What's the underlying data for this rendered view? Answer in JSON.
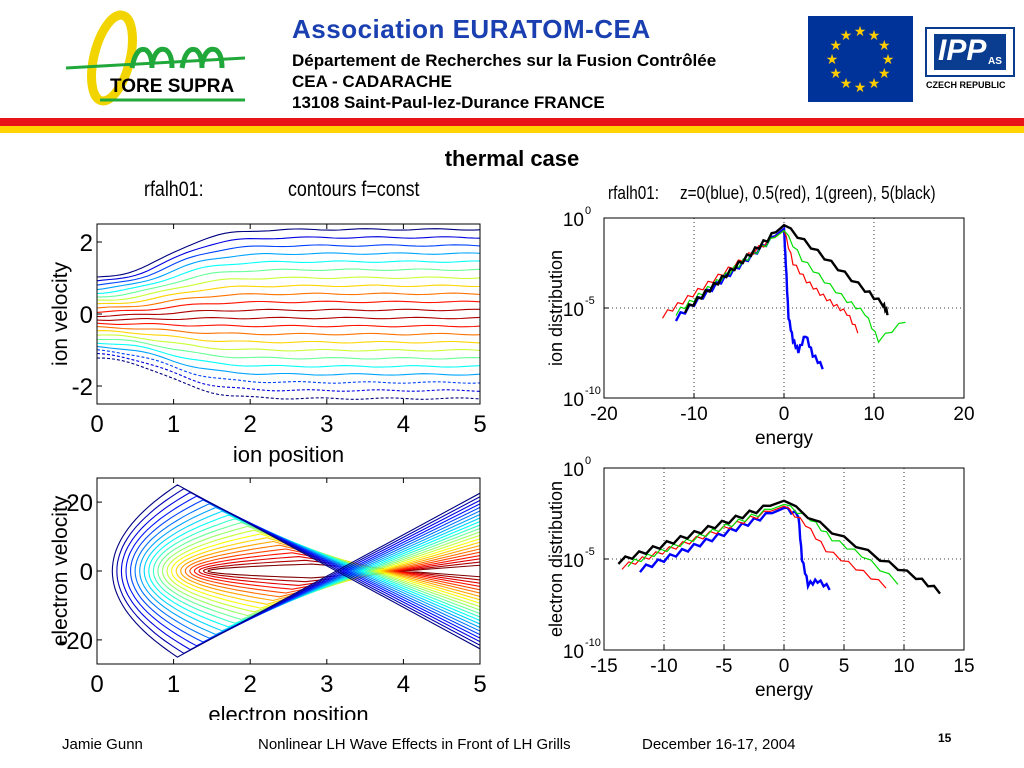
{
  "header": {
    "logo_text": "TORE SUPRA",
    "title": "Association  EURATOM-CEA",
    "line1": "Département de Recherches sur la Fusion Contrôlée",
    "line2": "CEA - CADARACHE",
    "line3": "13108 Saint-Paul-lez-Durance   FRANCE",
    "ipp_logo": "IPP",
    "ipp_sub": "AS",
    "ipp_country": "CZECH REPUBLIC",
    "eu_flag_icon": "eu-flag-icon"
  },
  "slide_title": "thermal case",
  "footer": {
    "author": "Jamie Gunn",
    "talk": "Nonlinear LH Wave Effects in Front of LH Grills",
    "date": "December 16-17, 2004",
    "page": "15"
  },
  "colors": {
    "header_blue": "#1a3fb0",
    "stripe_red": "#e8141a",
    "stripe_yellow": "#ffd400",
    "eu_blue": "#003399",
    "eu_star": "#ffcc00"
  },
  "chart_data": [
    {
      "type": "contour",
      "title_left": "rfalh01:",
      "title_right": "contours f=const",
      "xlabel": "ion position",
      "ylabel": "ion velocity",
      "xlim": [
        0,
        5
      ],
      "ylim": [
        -2.5,
        2.5
      ],
      "xticks": [
        "0",
        "1",
        "2",
        "3",
        "4",
        "5"
      ],
      "yticks": [
        "2",
        "0",
        "-2"
      ],
      "ytick_values": [
        2,
        0,
        -2
      ],
      "levels": 22
    },
    {
      "type": "contour",
      "xlabel": "electron position",
      "ylabel": "electron velocity",
      "xlim": [
        0,
        5
      ],
      "ylim": [
        -27,
        27
      ],
      "xticks": [
        "0",
        "1",
        "2",
        "3",
        "4",
        "5"
      ],
      "yticks": [
        "20",
        "0",
        "-20"
      ],
      "ytick_values": [
        20,
        0,
        -20
      ],
      "levels": 22
    },
    {
      "type": "line",
      "scale_y": "log",
      "title_left": "rfalh01:",
      "title_right": "z=0(blue), 0.5(red), 1(green), 5(black)",
      "xlabel": "energy",
      "ylabel": "ion distribution",
      "xlim": [
        -20,
        20
      ],
      "ylim_exp": [
        -10,
        0
      ],
      "xticks": [
        "-20",
        "-10",
        "0",
        "10",
        "20"
      ],
      "xtick_values": [
        -20,
        -10,
        0,
        10,
        20
      ],
      "yticks": [
        {
          "base": "10",
          "exp": "0",
          "value": 0
        },
        {
          "base": "10",
          "exp": "-5",
          "value": -5
        },
        {
          "base": "10",
          "exp": "-10",
          "value": -10
        }
      ],
      "grid": true,
      "series": [
        {
          "color": "#0000ff",
          "peak_exp": -0.6,
          "left_end": -12.0,
          "right_points": [
            [
              0,
              -0.6
            ],
            [
              0.2,
              -2.5
            ],
            [
              0.5,
              -5.5
            ],
            [
              1,
              -6.8
            ],
            [
              1.6,
              -7.4
            ],
            [
              2.4,
              -6.5
            ],
            [
              3.2,
              -7.6
            ],
            [
              4.3,
              -8.3
            ]
          ]
        },
        {
          "color": "#ff0000",
          "peak_exp": -0.7,
          "left_end": -13.5,
          "right_points": [
            [
              0,
              -0.7
            ],
            [
              1,
              -2.5
            ],
            [
              2.5,
              -3.5
            ],
            [
              4,
              -4.2
            ],
            [
              5.5,
              -4.8
            ],
            [
              7,
              -5.3
            ],
            [
              8.2,
              -6.3
            ]
          ]
        },
        {
          "color": "#00dd00",
          "peak_exp": -0.7,
          "left_end": -12.0,
          "right_points": [
            [
              0,
              -0.7
            ],
            [
              2,
              -2.3
            ],
            [
              4.5,
              -3.5
            ],
            [
              7,
              -4.6
            ],
            [
              9,
              -5.3
            ],
            [
              10.5,
              -6.8
            ],
            [
              13.5,
              -5.7
            ]
          ]
        },
        {
          "color": "#000000",
          "peak_exp": -0.4,
          "left_end": -11.0,
          "right_points": [
            [
              0,
              -0.4
            ],
            [
              3,
              -1.6
            ],
            [
              6,
              -2.8
            ],
            [
              9,
              -4.0
            ],
            [
              11,
              -4.8
            ],
            [
              11.5,
              -5.3
            ]
          ]
        }
      ]
    },
    {
      "type": "line",
      "scale_y": "log",
      "xlabel": "energy",
      "ylabel": "electron distribution",
      "xlim": [
        -15,
        15
      ],
      "ylim_exp": [
        -10,
        0
      ],
      "xticks": [
        "-15",
        "-10",
        "-5",
        "0",
        "5",
        "10",
        "15"
      ],
      "xtick_values": [
        -15,
        -10,
        -5,
        0,
        5,
        10,
        15
      ],
      "yticks": [
        {
          "base": "10",
          "exp": "0",
          "value": 0
        },
        {
          "base": "10",
          "exp": "-5",
          "value": -5
        },
        {
          "base": "10",
          "exp": "-10",
          "value": -10
        }
      ],
      "grid": true,
      "series": [
        {
          "color": "#0000ff",
          "peak_exp": -2.2,
          "left_end": -12.0,
          "right_points": [
            [
              0,
              -2.2
            ],
            [
              1.2,
              -2.6
            ],
            [
              1.5,
              -5
            ],
            [
              2,
              -6.4
            ],
            [
              2.8,
              -6.2
            ],
            [
              3.8,
              -6.6
            ]
          ]
        },
        {
          "color": "#ff0000",
          "peak_exp": -2.1,
          "left_end": -13.5,
          "right_points": [
            [
              0,
              -2.1
            ],
            [
              1.8,
              -3.1
            ],
            [
              3.5,
              -4.5
            ],
            [
              6,
              -5.5
            ],
            [
              8.5,
              -6.5
            ]
          ]
        },
        {
          "color": "#00dd00",
          "peak_exp": -2.0,
          "left_end": -13.0,
          "right_points": [
            [
              0,
              -2.0
            ],
            [
              2.2,
              -2.8
            ],
            [
              4,
              -3.9
            ],
            [
              6.5,
              -4.8
            ],
            [
              9.5,
              -6.3
            ]
          ]
        },
        {
          "color": "#000000",
          "peak_exp": -1.8,
          "left_end": -13.8,
          "right_points": [
            [
              0,
              -1.8
            ],
            [
              4,
              -3.5
            ],
            [
              8,
              -5.0
            ],
            [
              11,
              -6.0
            ],
            [
              13,
              -6.8
            ]
          ]
        }
      ]
    }
  ]
}
